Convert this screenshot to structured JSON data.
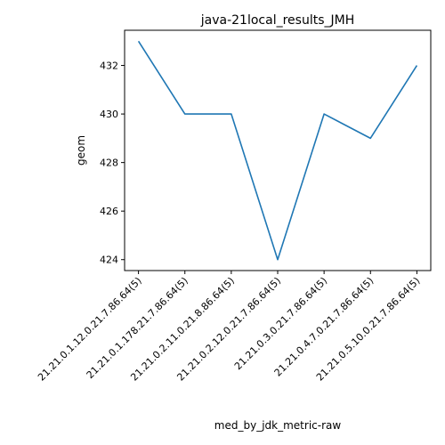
{
  "chart_data": {
    "type": "line",
    "title": "java-21local_results_JMH",
    "xlabel": "med_by_jdk_metric-raw",
    "ylabel": "geom",
    "categories": [
      "21.21.0.1.12.0.21.7.86.64(5)",
      "21.21.0.1.178.21.7.86.64(5)",
      "21.21.0.2.11.0.21.8.86.64(5)",
      "21.21.0.2.12.0.21.7.86.64(5)",
      "21.21.0.3.0.21.7.86.64(5)",
      "21.21.0.4.7.0.21.7.86.64(5)",
      "21.21.0.5.10.0.21.7.86.64(5)"
    ],
    "series": [
      {
        "values": [
          433,
          430,
          430,
          424,
          430,
          429,
          432
        ]
      }
    ],
    "yticks": [
      "424",
      "426",
      "428",
      "430",
      "432"
    ],
    "ylim": [
      423.55,
      433.45
    ],
    "grid": false,
    "line_color": "#1f77b4"
  }
}
